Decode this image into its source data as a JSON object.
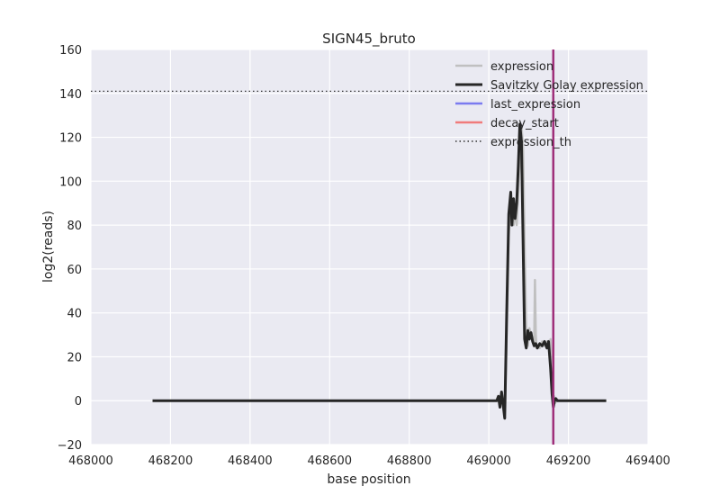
{
  "chart_data": {
    "type": "line",
    "title": "SIGN45_bruto",
    "xlabel": "base position",
    "ylabel": "log2(reads)",
    "xlim": [
      468000,
      469400
    ],
    "ylim": [
      -20,
      160
    ],
    "xticks": [
      468000,
      468200,
      468400,
      468600,
      468800,
      469000,
      469200,
      469400
    ],
    "yticks": [
      -20,
      0,
      20,
      40,
      60,
      80,
      100,
      120,
      140,
      160
    ],
    "ytick_labels": [
      "−20",
      "0",
      "20",
      "40",
      "60",
      "80",
      "100",
      "120",
      "140",
      "160"
    ],
    "grid": true,
    "legend_position": "upper right",
    "series": [
      {
        "name": "expression",
        "color": "#c0c0c0",
        "style": "solid",
        "x": [
          468155,
          468900,
          469020,
          469027,
          469030,
          469033,
          469036,
          469040,
          469045,
          469050,
          469055,
          469058,
          469062,
          469066,
          469070,
          469074,
          469078,
          469082,
          469086,
          469090,
          469094,
          469098,
          469102,
          469106,
          469110,
          469114,
          469116,
          469118,
          469120,
          469124,
          469128,
          469134,
          469140,
          469146,
          469150,
          469155,
          469159,
          469162,
          469164,
          469167,
          469170,
          469175,
          469180,
          469200,
          469295
        ],
        "y": [
          0,
          0,
          0,
          2,
          -1,
          3,
          -2,
          -5,
          30,
          75,
          93,
          85,
          80,
          86,
          80,
          95,
          110,
          125,
          115,
          70,
          32,
          25,
          33,
          30,
          27,
          25,
          55,
          30,
          24,
          25,
          24,
          27,
          25,
          27,
          24,
          28,
          12,
          -1,
          2,
          -1,
          1,
          0,
          0,
          0,
          0
        ]
      },
      {
        "name": "Savitzky Golay expression",
        "color": "#262626",
        "style": "solid",
        "x": [
          468155,
          468900,
          469020,
          469024,
          469028,
          469032,
          469036,
          469040,
          469045,
          469050,
          469055,
          469058,
          469062,
          469066,
          469070,
          469074,
          469078,
          469082,
          469086,
          469090,
          469094,
          469098,
          469102,
          469106,
          469110,
          469114,
          469118,
          469122,
          469128,
          469134,
          469140,
          469146,
          469150,
          469155,
          469159,
          469162,
          469165,
          469168,
          469172,
          469178,
          469185,
          469200,
          469295
        ],
        "y": [
          0,
          0,
          0,
          2,
          -3,
          4,
          -2,
          -8,
          40,
          85,
          95,
          80,
          92,
          83,
          90,
          107,
          126,
          118,
          72,
          28,
          24,
          32,
          28,
          31,
          27,
          25,
          26,
          24,
          26,
          25,
          27,
          24,
          27,
          15,
          3,
          -3,
          0,
          1,
          0,
          0,
          0,
          0,
          0
        ]
      }
    ],
    "legend": [
      {
        "label": "expression",
        "color": "#c0c0c0",
        "style": "solid",
        "width": 2.5
      },
      {
        "label": "Savitzky Golay expression",
        "color": "#262626",
        "style": "solid",
        "width": 3
      },
      {
        "label": "last_expression",
        "color": "#7b7bf0",
        "style": "solid",
        "width": 2.5
      },
      {
        "label": "decay_start",
        "color": "#f07b7b",
        "style": "solid",
        "width": 2.5
      },
      {
        "label": "expression_th",
        "color": "#333333",
        "style": "dotted",
        "width": 1.5
      }
    ],
    "last_expression_x": 469162,
    "decay_start_x": 469162,
    "overlap_color": "#a0307a",
    "expression_th": 141,
    "plot_background": "#eaeaf2",
    "grid_color": "#ffffff"
  }
}
